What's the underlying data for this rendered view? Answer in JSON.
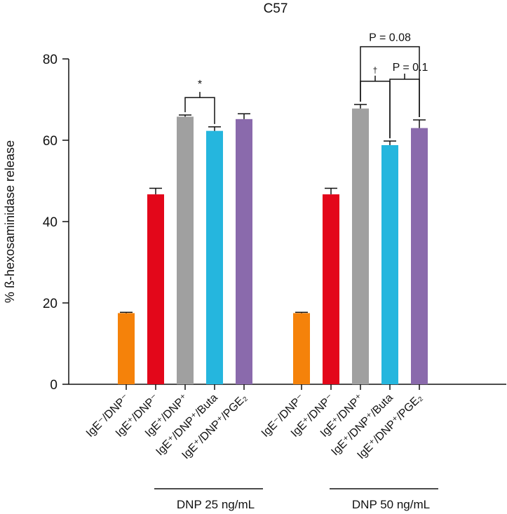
{
  "chart_data": {
    "type": "bar",
    "title": "C57",
    "ylabel": "% ß-hexosaminidase release",
    "xlabel": "",
    "ylim": [
      0,
      80
    ],
    "yticks": [
      0,
      20,
      40,
      60,
      80
    ],
    "categories": [
      "IgE⁻/DNP⁻",
      "IgE⁺/DNP⁻",
      "IgE⁺/DNP⁺",
      "IgE⁺/DNP⁺/Buta",
      "IgE⁺/DNP⁺/PGE₂"
    ],
    "colors": [
      "#F5820A",
      "#E3071A",
      "#A0A0A0",
      "#25B6DE",
      "#8A6AAC"
    ],
    "groups": [
      {
        "label": "DNP 25 ng/mL",
        "values": [
          17.5,
          46.7,
          65.8,
          62.3,
          65.2
        ],
        "errors": [
          0.2,
          1.5,
          0.4,
          1.0,
          1.3
        ]
      },
      {
        "label": "DNP 50 ng/mL",
        "values": [
          17.5,
          46.7,
          67.8,
          58.8,
          63.0
        ],
        "errors": [
          0.2,
          1.5,
          1.0,
          1.0,
          2.0
        ]
      }
    ],
    "annotations": [
      {
        "group": 0,
        "from": 2,
        "to": 3,
        "text": "*"
      },
      {
        "group": 1,
        "from": 2,
        "to": 3,
        "text": "†"
      },
      {
        "group": 1,
        "from": 3,
        "to": 4,
        "text": "P = 0.1"
      },
      {
        "group": 1,
        "from": 2,
        "to": 4,
        "text": "P = 0.08"
      }
    ]
  }
}
